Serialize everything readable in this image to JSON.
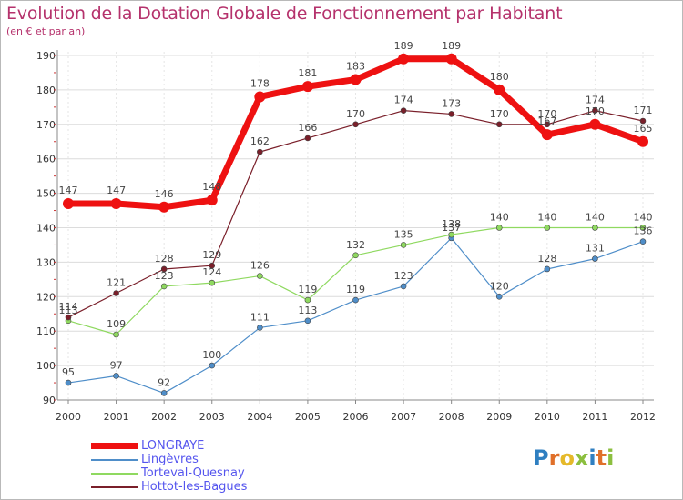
{
  "header": {
    "title": "Evolution de la Dotation Globale de Fonctionnement par Habitant",
    "subtitle": "(en € et par an)"
  },
  "logo": {
    "text": "Proxiti",
    "letters": [
      "P",
      "r",
      "o",
      "x",
      "i",
      "t",
      "i"
    ],
    "letter_colors": [
      "#2f7fc1",
      "#e0702a",
      "#e5b92a",
      "#8cbf3f",
      "#2f7fc1",
      "#e0702a",
      "#8cbf3f"
    ]
  },
  "chart_data": {
    "type": "line",
    "title": "Evolution de la Dotation Globale de Fonctionnement par Habitant",
    "ylabel": "(en € et par an)",
    "xlabel": "",
    "x": [
      "2000",
      "2001",
      "2002",
      "2003",
      "2004",
      "2005",
      "2006",
      "2007",
      "2008",
      "2009",
      "2010",
      "2011",
      "2012"
    ],
    "ylim": [
      90,
      190
    ],
    "yticks": [
      "90",
      "100",
      "110",
      "120",
      "130",
      "140",
      "150",
      "160",
      "170",
      "180",
      "190"
    ],
    "grid": true,
    "legend_position": "bottom-left",
    "series": [
      {
        "name": "LONGRAYE",
        "color": "#ee1111",
        "legend_text_color": "#5555ee",
        "values": [
          147,
          147,
          146,
          148,
          178,
          181,
          183,
          189,
          189,
          180,
          167,
          170,
          165
        ],
        "labels": [
          "147",
          "147",
          "146",
          "148",
          "178",
          "181",
          "183",
          "189",
          "189",
          "180",
          "167",
          "170",
          "165"
        ]
      },
      {
        "name": "Lingèvres",
        "color": "#4f8ec9",
        "legend_text_color": "#5555ee",
        "values": [
          95,
          97,
          92,
          100,
          111,
          113,
          119,
          123,
          137,
          120,
          128,
          131,
          136
        ],
        "labels": [
          "95",
          "97",
          "92",
          "100",
          "111",
          "113",
          "119",
          "123",
          "137",
          "120",
          "128",
          "131",
          "136"
        ]
      },
      {
        "name": "Torteval-Quesnay",
        "color": "#8fd960",
        "legend_text_color": "#5555ee",
        "values": [
          113,
          109,
          123,
          124,
          126,
          119,
          132,
          135,
          138,
          140,
          140,
          140,
          140
        ],
        "labels": [
          "113",
          "109",
          "123",
          "124",
          "126",
          "119",
          "132",
          "135",
          "138",
          "140",
          "140",
          "140",
          "140"
        ]
      },
      {
        "name": "Hottot-les-Bagues",
        "color": "#7a1f2a",
        "legend_text_color": "#5555ee",
        "values": [
          114,
          121,
          128,
          129,
          162,
          166,
          170,
          174,
          173,
          170,
          170,
          174,
          171
        ],
        "labels": [
          "114",
          "121",
          "128",
          "129",
          "162",
          "166",
          "170",
          "174",
          "173",
          "170",
          "170",
          "174",
          "171"
        ]
      }
    ]
  }
}
